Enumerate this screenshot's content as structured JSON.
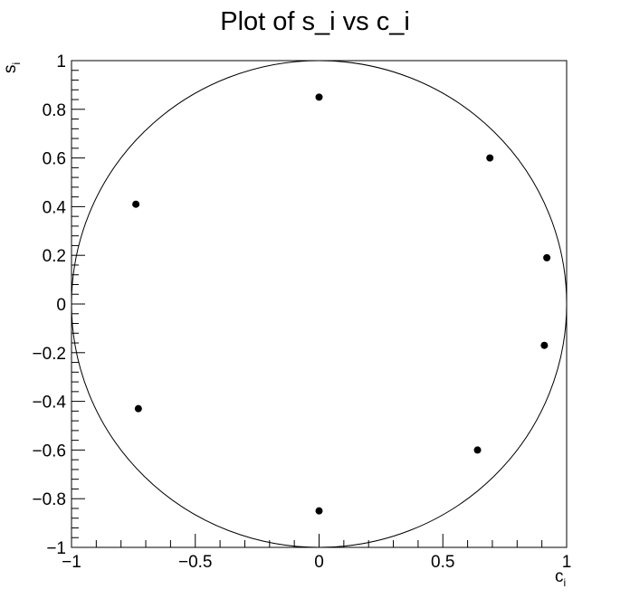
{
  "chart_data": {
    "type": "scatter",
    "title": "Plot of s_i vs c_i",
    "xlabel": "c",
    "xlabel_sub": "i",
    "ylabel": "s",
    "ylabel_sub": "i",
    "xlim": [
      -1,
      1
    ],
    "ylim": [
      -1,
      1
    ],
    "x_ticks": [
      -1,
      -0.5,
      0,
      0.5,
      1
    ],
    "x_tick_labels": [
      "−1",
      "−0.5",
      "0",
      "0.5",
      "1"
    ],
    "y_ticks": [
      -1,
      -0.8,
      -0.6,
      -0.4,
      -0.2,
      0,
      0.2,
      0.4,
      0.6,
      0.8,
      1
    ],
    "y_tick_labels": [
      "−1",
      "−0.8",
      "−0.6",
      "−0.4",
      "−0.2",
      "0",
      "0.2",
      "0.4",
      "0.6",
      "0.8",
      "1"
    ],
    "grid": false,
    "points": [
      {
        "x": 0.0,
        "y": 0.85
      },
      {
        "x": 0.69,
        "y": 0.6
      },
      {
        "x": 0.92,
        "y": 0.19
      },
      {
        "x": 0.91,
        "y": -0.17
      },
      {
        "x": 0.64,
        "y": -0.6
      },
      {
        "x": 0.0,
        "y": -0.85
      },
      {
        "x": -0.73,
        "y": -0.43
      },
      {
        "x": -0.74,
        "y": 0.41
      }
    ],
    "reference_circle": {
      "center": [
        0,
        0
      ],
      "radius": 1
    }
  }
}
